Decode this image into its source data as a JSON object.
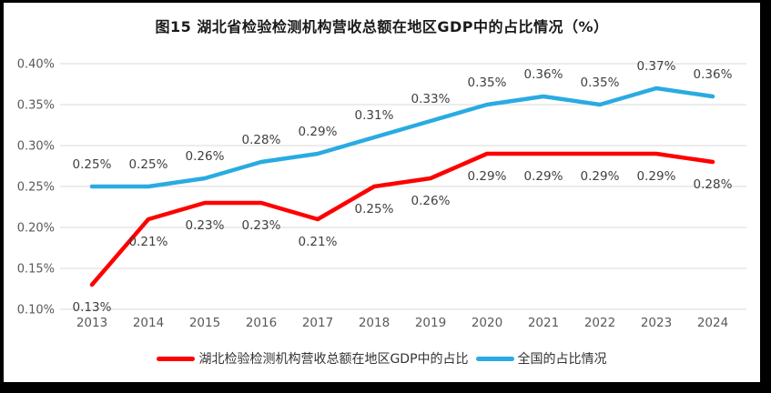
{
  "title": "图15  湖北省检验检测机构营收总额在地区GDP中的占比情况（%）",
  "chart_data": {
    "type": "line",
    "title": "图15  湖北省检验检测机构营收总额在地区GDP中的占比情况（%）",
    "categories": [
      "2013",
      "2014",
      "2015",
      "2016",
      "2017",
      "2018",
      "2019",
      "2020",
      "2021",
      "2022",
      "2023",
      "2024"
    ],
    "series": [
      {
        "name": "湖北检验检测机构营收总额在地区GDP中的占比",
        "color": "#FF0000",
        "values": [
          0.13,
          0.21,
          0.23,
          0.23,
          0.21,
          0.25,
          0.26,
          0.29,
          0.29,
          0.29,
          0.29,
          0.28
        ],
        "data_labels": [
          "0.13%",
          "0.21%",
          "0.23%",
          "0.23%",
          "0.21%",
          "0.25%",
          "0.26%",
          "0.29%",
          "0.29%",
          "0.29%",
          "0.29%",
          "0.28%"
        ],
        "label_placement": "below"
      },
      {
        "name": "全国的占比情况",
        "color": "#29ABE2",
        "values": [
          0.25,
          0.25,
          0.26,
          0.28,
          0.29,
          0.31,
          0.33,
          0.35,
          0.36,
          0.35,
          0.37,
          0.36
        ],
        "data_labels": [
          "0.25%",
          "0.25%",
          "0.26%",
          "0.28%",
          "0.29%",
          "0.31%",
          "0.33%",
          "0.35%",
          "0.36%",
          "0.35%",
          "0.37%",
          "0.36%"
        ],
        "label_placement": "above"
      }
    ],
    "xlabel": "",
    "ylabel": "",
    "ylim": [
      0.1,
      0.4
    ],
    "ytick_values": [
      0.1,
      0.15,
      0.2,
      0.25,
      0.3,
      0.35,
      0.4
    ],
    "ytick_labels": [
      "0.10%",
      "0.15%",
      "0.20%",
      "0.25%",
      "0.30%",
      "0.35%",
      "0.40%"
    ],
    "grid": true,
    "legend_position": "bottom"
  },
  "colors": {
    "background": "#FFFFFF",
    "frame_border": "#000000",
    "gridline": "#D9D9D9",
    "axis_text": "#595959",
    "data_label_text": "#3F3F3F",
    "series_hubei": "#FF0000",
    "series_national": "#29ABE2"
  }
}
